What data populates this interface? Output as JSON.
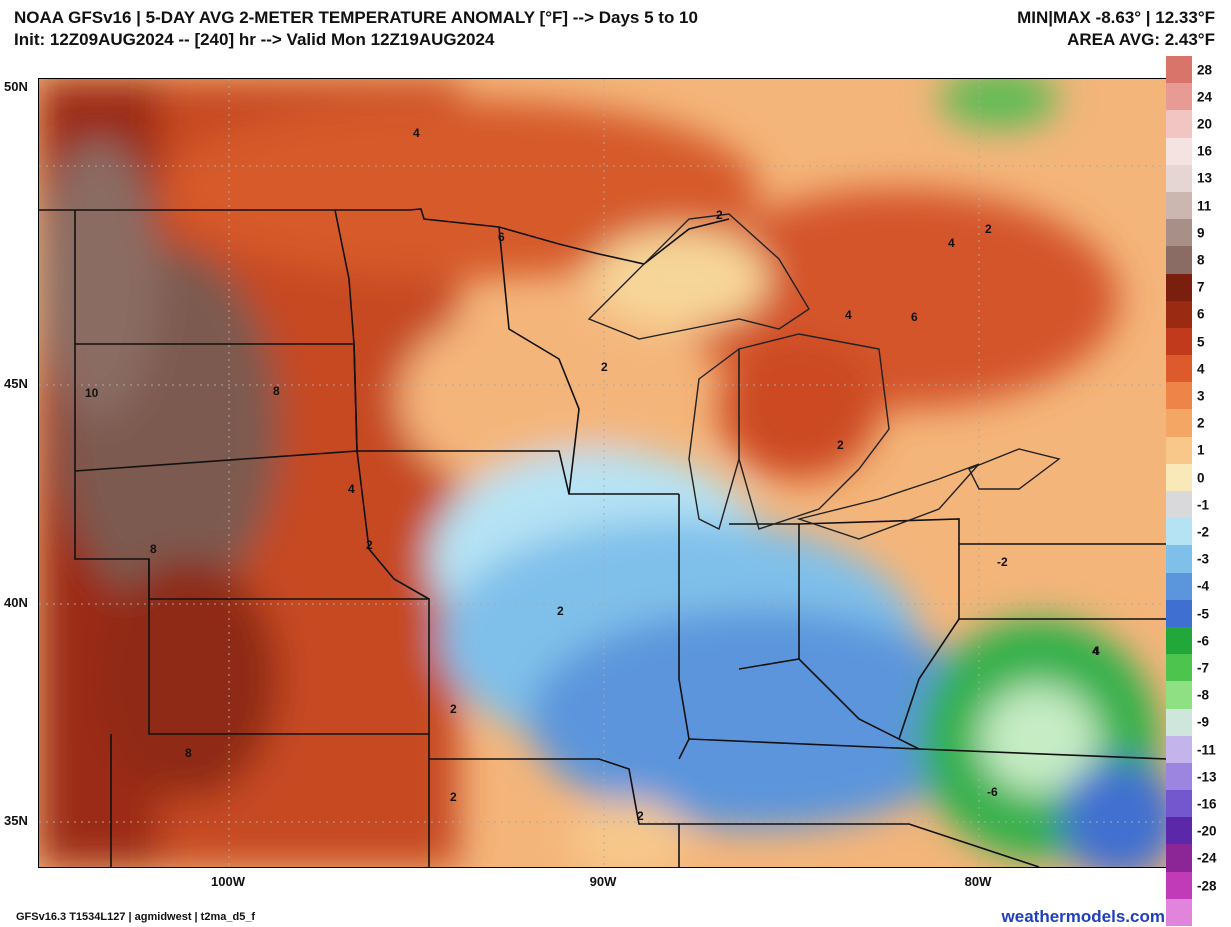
{
  "header": {
    "title_line1": "NOAA GFSv16 | 5-DAY AVG 2-METER TEMPERATURE ANOMALY [°F] --> Days 5 to 10",
    "title_line2": "Init: 12Z09AUG2024 -- [240] hr --> Valid Mon 12Z19AUG2024",
    "minmax": "MIN|MAX -8.63° | 12.33°F",
    "area_avg": "AREA AVG: 2.43°F"
  },
  "axes": {
    "lat_labels": [
      "50N",
      "45N",
      "40N",
      "35N"
    ],
    "lon_labels": [
      "100W",
      "90W",
      "80W"
    ]
  },
  "colorbar": {
    "labels": [
      "28",
      "24",
      "20",
      "16",
      "13",
      "11",
      "9",
      "8",
      "7",
      "6",
      "5",
      "4",
      "3",
      "2",
      "1",
      "0",
      "-1",
      "-2",
      "-3",
      "-4",
      "-5",
      "-6",
      "-7",
      "-8",
      "-9",
      "-11",
      "-13",
      "-16",
      "-20",
      "-24",
      "-28"
    ],
    "colors": [
      "#d9746a",
      "#e89a95",
      "#f2c4c2",
      "#f5e3e1",
      "#e6d6d3",
      "#cbb7b0",
      "#a88f87",
      "#8a6c64",
      "#7a1f0e",
      "#9b2a12",
      "#c23a1c",
      "#dd5a2c",
      "#ee8448",
      "#f4a765",
      "#f7c88a",
      "#fae9b8",
      "#d9d9dc",
      "#b6e3f4",
      "#7fc0ea",
      "#5b95dc",
      "#3f6fd0",
      "#22a83a",
      "#4cc44d",
      "#8fe083",
      "#cfe6dc",
      "#c4b4ec",
      "#9b85e0",
      "#7457cf",
      "#5a28a8",
      "#8c2596",
      "#c13bb8",
      "#e084dc"
    ]
  },
  "contour_labels": [
    "4",
    "6",
    "2",
    "4",
    "2",
    "4",
    "6",
    "2",
    "2",
    "10",
    "8",
    "4",
    "2",
    "8",
    "2",
    "2",
    "8",
    "2",
    "4",
    "2",
    "4",
    "-2",
    "-6"
  ],
  "footer": {
    "left": "GFSv16.3 T1534L127 | agmidwest | t2ma_d5_f",
    "right": "weathermodels.com"
  }
}
